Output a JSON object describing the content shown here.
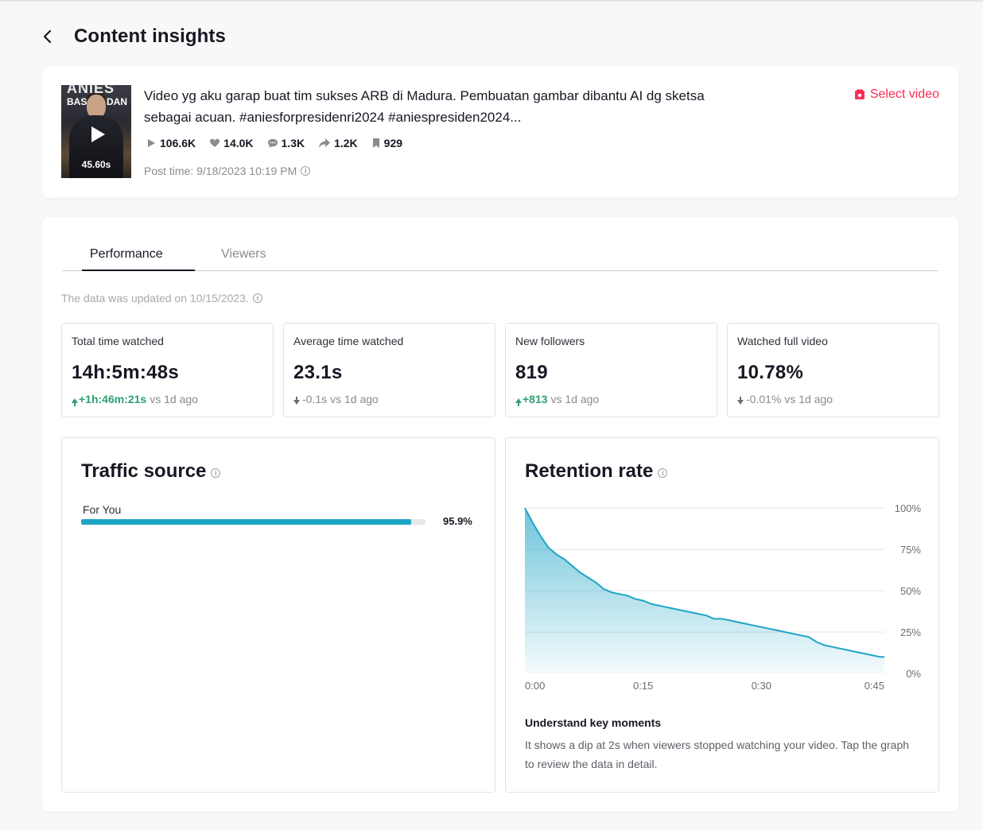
{
  "header": {
    "title": "Content insights"
  },
  "video": {
    "thumbnail_title_top": "ANIES",
    "thumbnail_title_left": "BAS",
    "thumbnail_title_right": "DAN",
    "duration": "45.60s",
    "description": "Video yg aku garap buat tim sukses ARB di Madura. Pembuatan gambar dibantu AI dg sketsa sebagai acuan. #aniesforpresidenri2024 #aniespresiden2024...",
    "stats": {
      "views": "106.6K",
      "likes": "14.0K",
      "comments": "1.3K",
      "shares": "1.2K",
      "saves": "929"
    },
    "post_time": "Post time: 9/18/2023 10:19 PM",
    "select_label": "Select video"
  },
  "tabs": {
    "performance": "Performance",
    "viewers": "Viewers"
  },
  "updated_text": "The data was updated on 10/15/2023.",
  "metrics": [
    {
      "label": "Total time watched",
      "value": "14h:5m:48s",
      "delta": "+1h:46m:21s",
      "suffix": "vs 1d ago",
      "direction": "up"
    },
    {
      "label": "Average time watched",
      "value": "23.1s",
      "delta": "-0.1s",
      "suffix": "vs 1d ago",
      "direction": "down"
    },
    {
      "label": "New followers",
      "value": "819",
      "delta": "+813",
      "suffix": "vs 1d ago",
      "direction": "up"
    },
    {
      "label": "Watched full video",
      "value": "10.78%",
      "delta": "-0.01%",
      "suffix": "vs 1d ago",
      "direction": "down"
    }
  ],
  "traffic": {
    "title": "Traffic source",
    "sources": [
      {
        "label": "For You",
        "value": "95.9%",
        "fraction": 0.959
      }
    ]
  },
  "retention": {
    "title": "Retention rate",
    "key_moments_title": "Understand key moments",
    "key_moments_text": "It shows a dip at 2s when viewers stopped watching your video. Tap the graph to review the data in detail."
  },
  "colors": {
    "accent": "#fe2c55",
    "chart": "#1fa5c6",
    "positive": "#2ea06f"
  },
  "chart_data": {
    "type": "area",
    "title": "Retention rate",
    "xlabel": "",
    "ylabel": "",
    "x_ticks": [
      "0:00",
      "0:15",
      "0:30",
      "0:45"
    ],
    "y_ticks": [
      "0%",
      "25%",
      "50%",
      "75%",
      "100%"
    ],
    "xlim": [
      0,
      45.6
    ],
    "ylim": [
      0,
      100
    ],
    "grid": true,
    "series": [
      {
        "x": [
          0,
          1,
          2,
          3,
          4,
          5,
          6,
          7,
          8,
          9,
          10,
          11,
          12,
          13,
          14,
          15,
          16,
          17,
          18,
          19,
          20,
          21,
          22,
          23,
          24,
          25,
          26,
          27,
          28,
          29,
          30,
          31,
          32,
          33,
          34,
          35,
          36,
          37,
          38,
          39,
          40,
          41,
          42,
          43,
          44,
          45,
          45.6
        ],
        "y": [
          100,
          91,
          83,
          76,
          72,
          69,
          65,
          61,
          58,
          55,
          51,
          49,
          48,
          47,
          45,
          44,
          42,
          41,
          40,
          39,
          38,
          37,
          36,
          35,
          33,
          33,
          32,
          31,
          30,
          29,
          28,
          27,
          26,
          25,
          24,
          23,
          22,
          19,
          17,
          16,
          15,
          14,
          13,
          12,
          11,
          10,
          10
        ]
      }
    ]
  }
}
